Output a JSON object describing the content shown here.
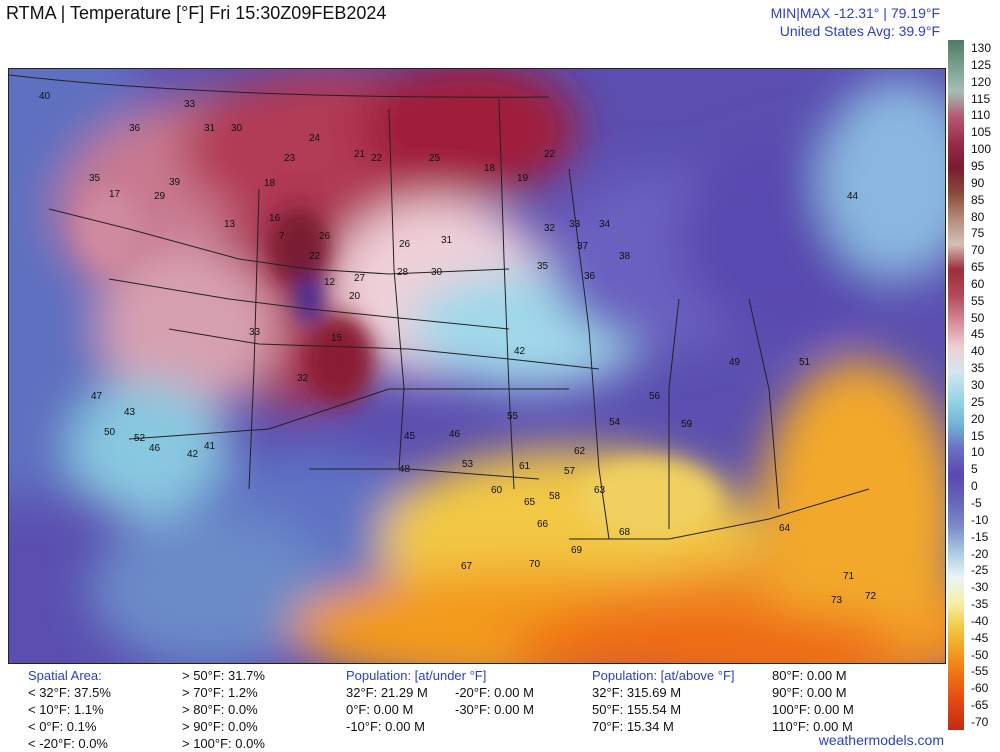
{
  "header": {
    "title": "RTMA | Temperature [°F]  Fri 15:30Z09FEB2024",
    "minmax": "MIN|MAX -12.31°  |  79.19°F",
    "avg": "United States Avg: 39.9°F"
  },
  "colorbar": {
    "ticks": [
      "130",
      "125",
      "120",
      "115",
      "110",
      "105",
      "100",
      "95",
      "90",
      "85",
      "80",
      "75",
      "70",
      "65",
      "60",
      "55",
      "50",
      "45",
      "40",
      "35",
      "30",
      "25",
      "20",
      "15",
      "10",
      "5",
      "0",
      "-5",
      "-10",
      "-15",
      "-20",
      "-25",
      "-30",
      "-35",
      "-40",
      "-45",
      "-50",
      "-55",
      "-60",
      "-65",
      "-70"
    ],
    "colors": [
      "#4f7a66",
      "#7a9f8c",
      "#a6beb2",
      "#b35a72",
      "#9b2c4a",
      "#7a1a30",
      "#8a4a38",
      "#b58a7a",
      "#d4c0b6",
      "#9d2d3a",
      "#b24a5a",
      "#d28a96",
      "#f0cdd3",
      "#d4e6ee",
      "#9ad6e6",
      "#73b6d6",
      "#6a6ec4",
      "#5a48b0",
      "#6464b8",
      "#7a8ac8",
      "#a8c8e0",
      "#e8f4f8",
      "#f6f0a8",
      "#f2c844",
      "#f29a1e",
      "#ee6a14",
      "#e04414",
      "#c42a18"
    ]
  },
  "map_labels": [
    "40",
    "39",
    "36",
    "33",
    "35",
    "31",
    "33",
    "30",
    "32",
    "29",
    "23",
    "21",
    "22",
    "25",
    "24",
    "18",
    "19",
    "22",
    "18",
    "13",
    "7",
    "26",
    "22",
    "28",
    "30",
    "31",
    "26",
    "32",
    "33",
    "34",
    "37",
    "38",
    "36",
    "35",
    "42",
    "47",
    "43",
    "50",
    "52",
    "46",
    "41",
    "42",
    "45",
    "46",
    "48",
    "53",
    "55",
    "57",
    "61",
    "63",
    "65",
    "66",
    "62",
    "58",
    "60",
    "67",
    "68",
    "69",
    "70",
    "71",
    "73",
    "72",
    "54",
    "56",
    "59",
    "64",
    "49",
    "51",
    "44",
    "27",
    "17",
    "16",
    "12",
    "20",
    "15"
  ],
  "footer": {
    "spatial_head": "Spatial Area:",
    "spatial": [
      "< 32°F: 37.5%",
      "< 10°F: 1.1%",
      "< 0°F: 0.1%",
      "< -20°F: 0.0%"
    ],
    "spatial2": [
      "> 50°F: 31.7%",
      "> 70°F: 1.2%",
      "> 80°F: 0.0%",
      "> 90°F: 0.0%",
      "> 100°F: 0.0%"
    ],
    "pop_under_head": "Population: [at/under °F]",
    "pop_under": [
      "32°F: 21.29 M",
      "0°F: 0.00 M",
      "-10°F: 0.00 M"
    ],
    "pop_under2": [
      "-20°F: 0.00 M",
      "-30°F: 0.00 M"
    ],
    "pop_above_head": "Population: [at/above °F]",
    "pop_above": [
      "32°F: 315.69 M",
      "50°F: 155.54 M",
      "70°F: 15.34 M"
    ],
    "pop_above2": [
      "80°F: 0.00 M",
      "90°F: 0.00 M",
      "100°F: 0.00 M",
      "110°F: 0.00 M"
    ],
    "brand": "weathermodels.com"
  }
}
